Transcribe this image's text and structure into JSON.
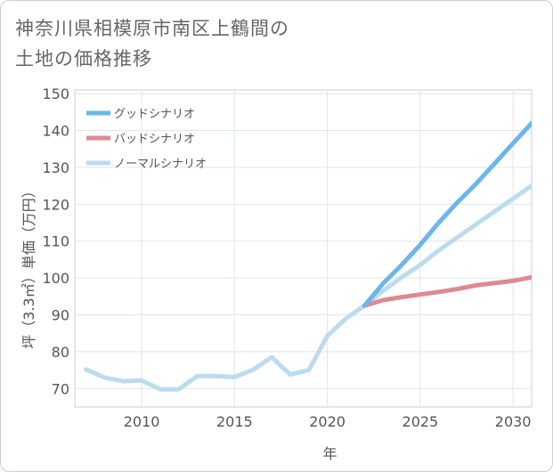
{
  "title_line1": "神奈川県相模原市南区上鶴間の",
  "title_line2": "土地の価格推移",
  "chart_data": {
    "type": "line",
    "title": "神奈川県相模原市南区上鶴間の土地の価格推移",
    "xlabel": "年",
    "ylabel": "坪（3.3㎡）単価（万円）",
    "xlim": [
      2006.4,
      2031
    ],
    "ylim": [
      65,
      151
    ],
    "x_ticks": [
      "2010",
      "2015",
      "2020",
      "2025",
      "2030"
    ],
    "y_ticks": [
      "70",
      "80",
      "90",
      "100",
      "110",
      "120",
      "130",
      "140",
      "150"
    ],
    "grid": true,
    "legend_position": "top-left",
    "series": [
      {
        "name": "グッドシナリオ",
        "color": "#6cb6ea",
        "x": [
          2022,
          2023,
          2024,
          2025,
          2026,
          2027,
          2028,
          2029,
          2030,
          2031
        ],
        "values": [
          92.5,
          98.5,
          103.5,
          109,
          115,
          120.5,
          125.5,
          131,
          136.5,
          142
        ]
      },
      {
        "name": "バッドシナリオ",
        "color": "#de8a93",
        "x": [
          2022,
          2023,
          2024,
          2025,
          2026,
          2027,
          2028,
          2029,
          2030,
          2031
        ],
        "values": [
          92.5,
          94,
          94.8,
          95.5,
          96.2,
          97,
          98,
          98.6,
          99.2,
          100.2
        ]
      },
      {
        "name": "ノーマルシナリオ",
        "color": "#bcdcec",
        "x": [
          2007,
          2008,
          2009,
          2010,
          2011,
          2012,
          2013,
          2014,
          2015,
          2016,
          2017,
          2018,
          2019,
          2020,
          2021,
          2022,
          2023,
          2024,
          2025,
          2026,
          2027,
          2028,
          2029,
          2030,
          2031
        ],
        "values": [
          75.2,
          73,
          72,
          72.2,
          69.8,
          69.8,
          73.4,
          73.4,
          73.1,
          75.1,
          78.5,
          73.8,
          75,
          84.3,
          89,
          92.5,
          96.5,
          100.2,
          103.5,
          107.5,
          111,
          114.5,
          118,
          121.5,
          125
        ]
      }
    ]
  }
}
